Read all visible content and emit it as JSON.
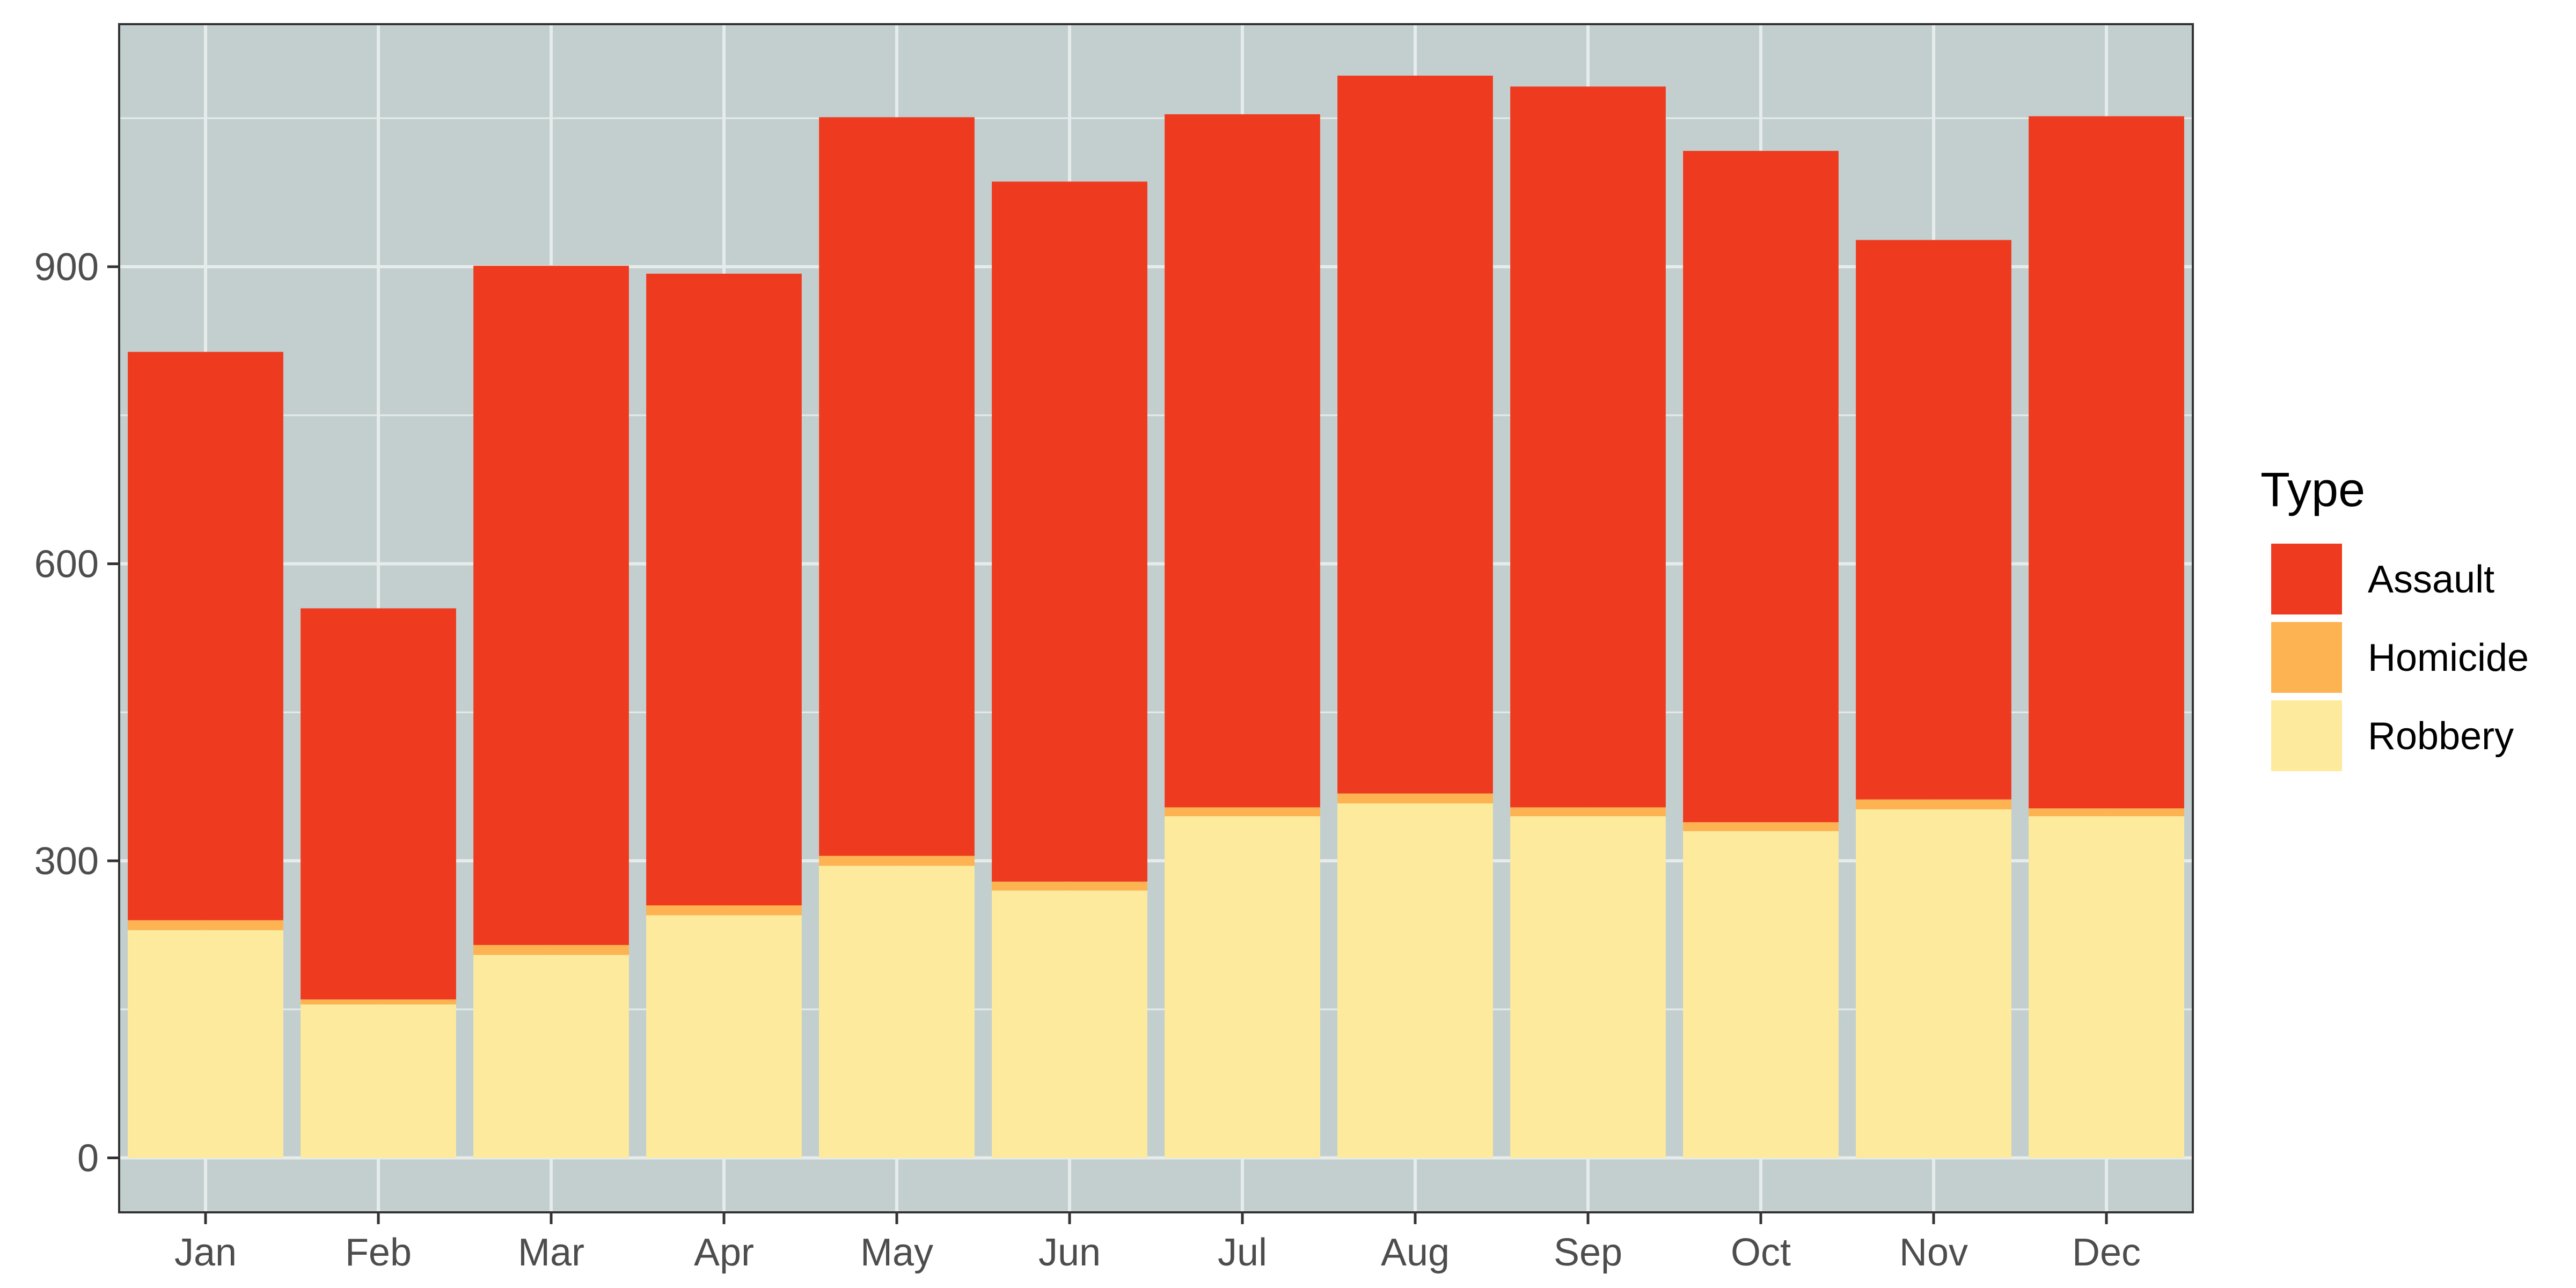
{
  "chart_data": {
    "type": "bar",
    "stacked": true,
    "categories": [
      "Jan",
      "Feb",
      "Mar",
      "Apr",
      "May",
      "Jun",
      "Jul",
      "Aug",
      "Sep",
      "Oct",
      "Nov",
      "Dec"
    ],
    "series": [
      {
        "name": "Robbery",
        "color": "#FDEA9D",
        "values": [
          230,
          155,
          205,
          245,
          295,
          270,
          345,
          358,
          345,
          330,
          352,
          345
        ]
      },
      {
        "name": "Homicide",
        "color": "#FDB352",
        "values": [
          10,
          5,
          10,
          10,
          10,
          9,
          9,
          10,
          9,
          9,
          10,
          8
        ]
      },
      {
        "name": "Assault",
        "color": "#EE3B20",
        "values": [
          574,
          395,
          686,
          638,
          746,
          707,
          700,
          725,
          728,
          678,
          565,
          699
        ]
      }
    ],
    "legend": {
      "title": "Type",
      "position": "right",
      "order": [
        "Assault",
        "Homicide",
        "Robbery"
      ]
    },
    "xlabel": "",
    "ylabel": "",
    "y_ticks": [
      0,
      300,
      600,
      900
    ],
    "ylim": [
      -55,
      1145
    ],
    "grid": true,
    "panel_background": "#C3CFCE",
    "gridline_color": "#E6EBEB"
  }
}
